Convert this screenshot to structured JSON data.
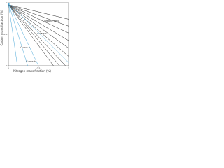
{
  "chart_data": {
    "type": "line",
    "xlabel": "Nitrogen mass fraction (%)",
    "ylabel": "Carbon mass fraction (%)",
    "annotations": [
      "Weight ratio",
      "Curve c",
      "Curve a",
      "Curve b"
    ],
    "xlim": [
      0,
      1
    ],
    "ylim": [
      0,
      1
    ],
    "xticks": [
      0,
      0.5,
      1
    ],
    "yticks": [
      0,
      0.5,
      1
    ],
    "series": [
      {
        "color": "#222222",
        "x": [
          0,
          1
        ],
        "values": [
          0.97,
          0.74
        ]
      },
      {
        "color": "#222222",
        "x": [
          0,
          1
        ],
        "values": [
          0.97,
          0.63
        ]
      },
      {
        "color": "#222222",
        "x": [
          0,
          1
        ],
        "values": [
          0.97,
          0.52
        ]
      },
      {
        "color": "#222222",
        "x": [
          0,
          1
        ],
        "values": [
          0.97,
          0.4
        ]
      },
      {
        "color": "#222222",
        "x": [
          0,
          1
        ],
        "values": [
          0.97,
          0.28
        ]
      },
      {
        "color": "#222222",
        "x": [
          0,
          1
        ],
        "values": [
          0.97,
          0.15
        ]
      },
      {
        "color": "#222222",
        "x": [
          0,
          0.95
        ],
        "values": [
          0.97,
          0
        ]
      },
      {
        "color": "#222222",
        "x": [
          0,
          0.85
        ],
        "values": [
          0.97,
          0
        ]
      },
      {
        "color": "#222222",
        "x": [
          0,
          0.75
        ],
        "values": [
          0.97,
          0
        ]
      },
      {
        "color": "#4aa8d8",
        "x": [
          0,
          0.15
        ],
        "values": [
          1,
          0
        ]
      },
      {
        "color": "#4aa8d8",
        "x": [
          0,
          0.32
        ],
        "values": [
          1,
          0
        ]
      },
      {
        "color": "#4aa8d8",
        "x": [
          0,
          0.5
        ],
        "values": [
          1,
          0
        ]
      },
      {
        "color": "#4aa8d8",
        "x": [
          0,
          1
        ],
        "values": [
          1,
          0.05
        ]
      }
    ]
  }
}
